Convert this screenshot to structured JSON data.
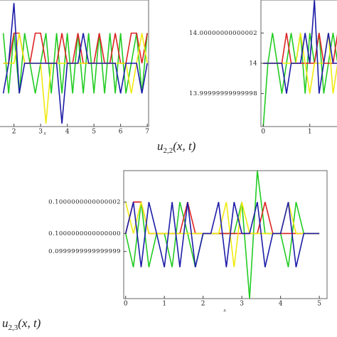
{
  "chart_data": [
    {
      "type": "line",
      "xlabel": "x",
      "x": [
        1.6,
        1.8,
        2.0,
        2.2,
        2.4,
        2.6,
        2.8,
        3.0,
        3.2,
        3.4,
        3.6,
        3.8,
        4.0,
        4.2,
        4.4,
        4.6,
        4.8,
        5.0,
        5.2,
        5.4,
        5.6,
        5.8,
        6.0,
        6.2,
        6.4,
        6.6,
        6.8,
        7.0
      ],
      "xlim": [
        1.45,
        7.05
      ],
      "xticks": [
        2,
        3,
        4,
        5,
        6,
        7
      ],
      "ylim": [
        -2.1,
        2.1
      ],
      "series": [
        {
          "color": "#22cc22",
          "values": [
            1,
            -1,
            1,
            -1,
            1,
            0,
            -1,
            0,
            1,
            -1,
            1,
            -1,
            1,
            -1,
            1,
            -1,
            1,
            -1,
            1,
            -1,
            1,
            -1,
            1,
            -1,
            0,
            1,
            -1,
            1
          ]
        },
        {
          "color": "#dd2222",
          "values": [
            0,
            0,
            1,
            1,
            0,
            0,
            1,
            1,
            0,
            0,
            0,
            1,
            0,
            0,
            1,
            0,
            0,
            0,
            1,
            0,
            0,
            1,
            0,
            0,
            1,
            1,
            0,
            1
          ]
        },
        {
          "color": "#f0ea10",
          "values": [
            0,
            0,
            0,
            1,
            0,
            0,
            0,
            0,
            -2,
            0,
            0,
            0,
            0,
            0,
            0,
            0,
            0,
            0,
            0,
            0,
            0,
            0,
            0,
            0,
            -1,
            0,
            1,
            0
          ]
        },
        {
          "color": "#1c1ca8",
          "values": [
            -1,
            0,
            2,
            -1,
            0,
            0,
            0,
            0,
            0,
            0,
            0,
            -2,
            0,
            0,
            0,
            1,
            0,
            0,
            0,
            0,
            0,
            0,
            -1,
            0,
            0,
            0,
            -1,
            0
          ]
        }
      ]
    },
    {
      "type": "line",
      "title": [
        "u",
        "2,2",
        "(x, t)"
      ],
      "x": [
        0,
        0.1,
        0.2,
        0.3,
        0.4,
        0.5,
        0.6,
        0.7,
        0.8,
        0.9,
        1.0,
        1.1,
        1.2,
        1.3,
        1.4,
        1.5,
        1.6
      ],
      "xlim": [
        -0.05,
        1.6
      ],
      "xticks": [
        0,
        1
      ],
      "ylim": [
        13.99999999999996,
        14.00000000000004
      ],
      "yticks": [
        14.00000000000002,
        14,
        13.99999999999998
      ],
      "series": [
        {
          "color": "#22cc22",
          "values": [
            13.99999999999996,
            14,
            14.00000000000002,
            14,
            13.99999999999998,
            14,
            14.00000000000002,
            14,
            14.00000000000002,
            13.99999999999998,
            14.00000000000002,
            14,
            14.00000000000002,
            13.99999999999998,
            14,
            14.00000000000002,
            14
          ]
        },
        {
          "color": "#dd2222",
          "values": [
            14,
            14,
            14,
            14,
            14,
            14.00000000000002,
            14,
            14,
            14,
            14,
            14,
            14,
            14.00000000000002,
            14,
            14,
            14,
            14.00000000000002
          ]
        },
        {
          "color": "#f0ea10",
          "values": [
            14,
            14,
            14,
            14,
            14,
            14,
            14,
            14,
            14.00000000000002,
            14,
            13.99999999999998,
            14,
            14,
            14,
            14.00000000000002,
            13.99999999999998,
            14
          ]
        },
        {
          "color": "#1c1ca8",
          "values": [
            14,
            14,
            14,
            14,
            14,
            13.99999999999998,
            14,
            14,
            14,
            14.00000000000002,
            14,
            14.00000000000004,
            13.99999999999998,
            14,
            14.00000000000002,
            14,
            14
          ]
        }
      ]
    },
    {
      "type": "line",
      "title": [
        "u",
        "2,3",
        "(x, t)"
      ],
      "xlabel": "x",
      "x": [
        0,
        0.2,
        0.4,
        0.6,
        0.8,
        1.0,
        1.2,
        1.4,
        1.6,
        1.8,
        2.0,
        2.2,
        2.4,
        2.6,
        2.8,
        3.0,
        3.2,
        3.4,
        3.6,
        3.8,
        4.0,
        4.2,
        4.4,
        4.6,
        4.8,
        5.0
      ],
      "xlim": [
        -0.05,
        5.2
      ],
      "xticks": [
        0,
        1,
        2,
        3,
        4,
        5
      ],
      "ylim": [
        0.0999999999999996,
        0.1000000000000004
      ],
      "yticks": [
        0.1000000000000002,
        {
          "value": 0.1,
          "label": "0.1000000000000000"
        },
        0.0999999999999999
      ],
      "series": [
        {
          "color": "#22cc22",
          "values": [
            0.1,
            0.0999999999999998,
            0.1000000000000002,
            0.0999999999999998,
            0.1,
            0.1,
            0.0999999999999998,
            0.1000000000000002,
            0.1,
            0.0999999999999998,
            0.1,
            0.1,
            0.1,
            0.1,
            0.1,
            0.1000000000000002,
            0.0999999999999996,
            0.1000000000000004,
            0.1,
            0.1,
            0.1,
            0.0999999999999998,
            0.1000000000000002,
            0.1,
            0.1,
            0.1
          ]
        },
        {
          "color": "#dd2222",
          "values": [
            0.1,
            0.1000000000000002,
            0.1000000000000002,
            0.1,
            0.1,
            0.1,
            0.1,
            0.1,
            0.1000000000000002,
            0.1,
            0.1,
            0.1,
            0.1,
            0.1,
            0.1,
            0.1,
            0.1,
            0.1,
            0.1000000000000002,
            0.1,
            0.1,
            0.1,
            0.1,
            0.1,
            0.1,
            0.1
          ]
        },
        {
          "color": "#f0ea10",
          "values": [
            0.1000000000000002,
            0.1,
            0.1000000000000002,
            0.1,
            0.1,
            0.1,
            0.1,
            0.1,
            0.1,
            0.1,
            0.1,
            0.1,
            0.1,
            0.1000000000000002,
            0.0999999999999998,
            0.1000000000000002,
            0.1,
            0.1,
            0.1,
            0.1,
            0.1,
            0.1000000000000002,
            0.1,
            0.1,
            0.1,
            0.1
          ]
        },
        {
          "color": "#1c1ca8",
          "values": [
            0.1,
            0.1000000000000002,
            0.0999999999999998,
            0.1000000000000002,
            0.1,
            0.0999999999999998,
            0.1000000000000002,
            0.0999999999999998,
            0.1000000000000002,
            0.0999999999999998,
            0.1,
            0.1,
            0.1000000000000002,
            0.0999999999999998,
            0.1000000000000002,
            0.1,
            0.1,
            0.1000000000000002,
            0.0999999999999998,
            0.1,
            0.1,
            0.1000000000000002,
            0.0999999999999998,
            0.1,
            0.1,
            0.1
          ]
        }
      ]
    }
  ]
}
